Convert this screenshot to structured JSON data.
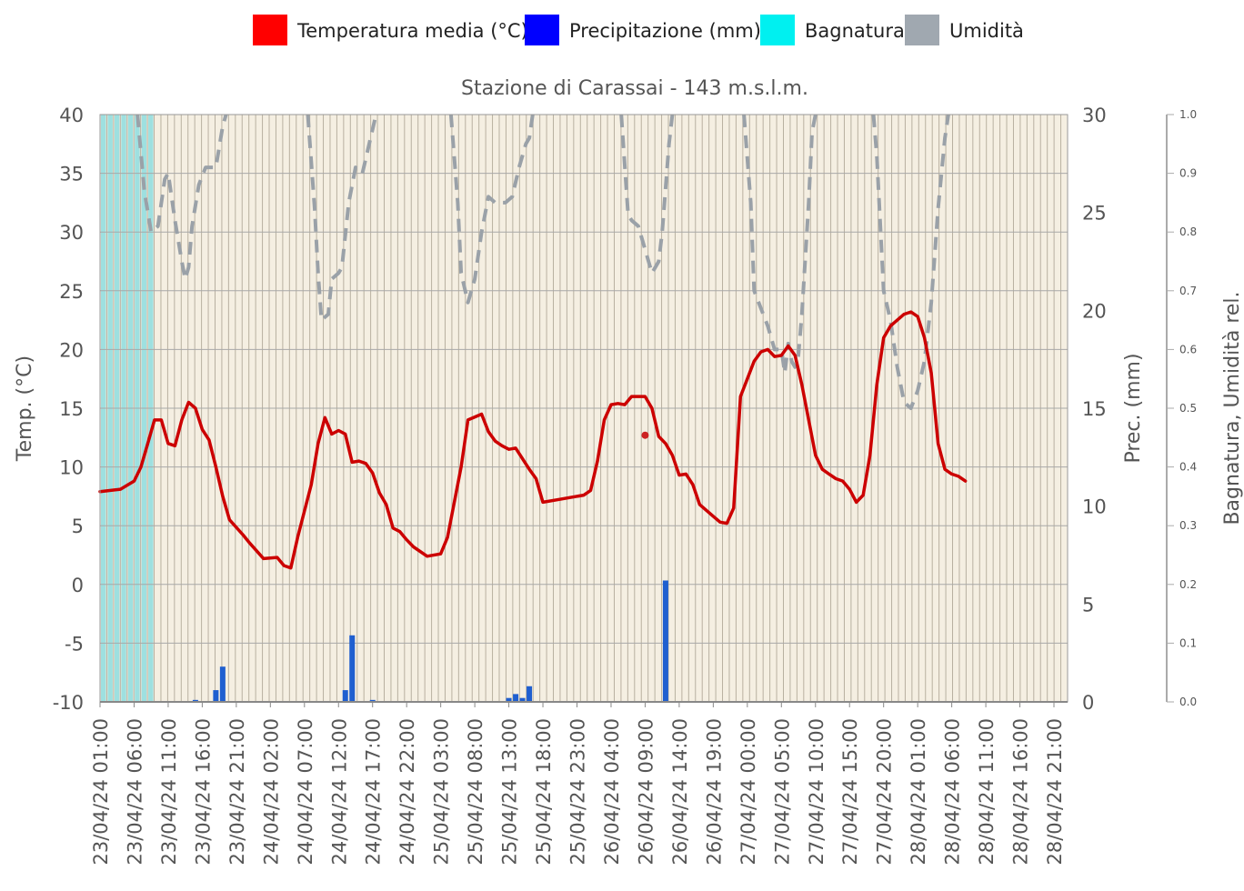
{
  "legend": [
    {
      "label": "Temperatura media (°C)",
      "color": "#ff0000"
    },
    {
      "label": "Precipitazione (mm)",
      "color": "#0000ff"
    },
    {
      "label": "Bagnatura",
      "color": "#00f0f0"
    },
    {
      "label": "Umidità",
      "color": "#a0a8b0"
    }
  ],
  "chart_data": {
    "type": "line",
    "title": "Stazione di Carassai - 143 m.s.l.m.",
    "legend_position": "top-center",
    "grid": true,
    "x_tick_labels": [
      "23/04/24 01:00",
      "23/04/24 06:00",
      "23/04/24 11:00",
      "23/04/24 16:00",
      "23/04/24 21:00",
      "24/04/24 02:00",
      "24/04/24 07:00",
      "24/04/24 12:00",
      "24/04/24 17:00",
      "24/04/24 22:00",
      "25/04/24 03:00",
      "25/04/24 08:00",
      "25/04/24 13:00",
      "25/04/24 18:00",
      "25/04/24 23:00",
      "26/04/24 04:00",
      "26/04/24 09:00",
      "26/04/24 14:00",
      "26/04/24 19:00",
      "27/04/24 00:00",
      "27/04/24 05:00",
      "27/04/24 10:00",
      "27/04/24 15:00",
      "27/04/24 20:00",
      "28/04/24 01:00",
      "28/04/24 06:00",
      "28/04/24 11:00",
      "28/04/24 16:00",
      "28/04/24 21:00"
    ],
    "x_unit": "hours since 23/04/24 01:00",
    "x_range": [
      0,
      142
    ],
    "axes": {
      "temp": {
        "label": "Temp. (°C)",
        "range": [
          -10,
          40
        ],
        "ticks": [
          -10,
          -5,
          0,
          5,
          10,
          15,
          20,
          25,
          30,
          35,
          40
        ],
        "color": "#555555"
      },
      "prec": {
        "label": "Prec. (mm)",
        "range": [
          0,
          30
        ],
        "ticks": [
          0,
          5,
          10,
          15,
          20,
          25,
          30
        ],
        "color": "#555555"
      },
      "rel": {
        "label": "Bagnatura, Umidità rel.",
        "range": [
          0,
          1
        ],
        "ticks": [
          "0.0",
          "0.1",
          "0.2",
          "0.3",
          "0.4",
          "0.5",
          "0.6",
          "0.7",
          "0.8",
          "0.9",
          "1.0"
        ],
        "color": "#777777"
      }
    },
    "series": [
      {
        "name": "Temperatura media (°C)",
        "axis": "temp",
        "color": "#cc0000",
        "style": "solid",
        "points": [
          [
            0,
            7.9
          ],
          [
            3,
            8.1
          ],
          [
            5,
            8.8
          ],
          [
            6,
            10
          ],
          [
            7,
            12
          ],
          [
            8,
            14
          ],
          [
            9,
            14
          ],
          [
            10,
            12
          ],
          [
            11,
            11.8
          ],
          [
            12,
            14
          ],
          [
            13,
            15.5
          ],
          [
            14,
            15
          ],
          [
            15,
            13.2
          ],
          [
            16,
            12.3
          ],
          [
            17,
            10
          ],
          [
            18,
            7.5
          ],
          [
            19,
            5.5
          ],
          [
            21,
            4.2
          ],
          [
            22,
            3.5
          ],
          [
            24,
            2.2
          ],
          [
            26,
            2.3
          ],
          [
            27,
            1.6
          ],
          [
            28,
            1.4
          ],
          [
            29,
            4
          ],
          [
            31,
            8.5
          ],
          [
            32,
            12
          ],
          [
            33,
            14.2
          ],
          [
            34,
            12.8
          ],
          [
            35,
            13.1
          ],
          [
            36,
            12.8
          ],
          [
            37,
            10.4
          ],
          [
            38,
            10.5
          ],
          [
            39,
            10.3
          ],
          [
            40,
            9.5
          ],
          [
            41,
            7.8
          ],
          [
            42,
            6.8
          ],
          [
            43,
            4.8
          ],
          [
            44,
            4.5
          ],
          [
            45,
            3.8
          ],
          [
            46,
            3.2
          ],
          [
            48,
            2.4
          ],
          [
            50,
            2.6
          ],
          [
            51,
            4
          ],
          [
            53,
            10
          ],
          [
            54,
            14
          ],
          [
            56,
            14.5
          ],
          [
            57,
            13
          ],
          [
            58,
            12.2
          ],
          [
            59,
            11.8
          ],
          [
            60,
            11.5
          ],
          [
            61,
            11.6
          ],
          [
            62,
            10.7
          ],
          [
            63,
            9.8
          ],
          [
            64,
            9
          ],
          [
            65,
            7
          ],
          [
            67,
            7.2
          ],
          [
            69,
            7.4
          ],
          [
            71,
            7.6
          ],
          [
            72,
            8
          ],
          [
            73,
            10.5
          ],
          [
            74,
            14
          ],
          [
            75,
            15.3
          ],
          [
            76,
            15.4
          ],
          [
            77,
            15.3
          ],
          [
            78,
            16
          ],
          [
            79,
            16
          ],
          [
            80,
            16
          ],
          [
            81,
            15
          ],
          [
            82,
            12.6
          ],
          [
            83,
            12
          ],
          [
            84,
            11
          ],
          [
            85,
            9.3
          ],
          [
            86,
            9.4
          ],
          [
            87,
            8.5
          ],
          [
            88,
            6.8
          ],
          [
            89,
            6.3
          ],
          [
            90,
            5.8
          ],
          [
            91,
            5.3
          ],
          [
            92,
            5.2
          ],
          [
            93,
            6.5
          ],
          [
            94,
            16
          ],
          [
            95,
            17.5
          ],
          [
            96,
            19
          ],
          [
            97,
            19.8
          ],
          [
            98,
            20
          ],
          [
            99,
            19.4
          ],
          [
            100,
            19.5
          ],
          [
            101,
            20.3
          ],
          [
            102,
            19.5
          ],
          [
            103,
            17
          ],
          [
            104,
            14
          ],
          [
            105,
            11
          ],
          [
            106,
            9.8
          ],
          [
            107,
            9.4
          ],
          [
            108,
            9
          ],
          [
            109,
            8.8
          ],
          [
            110,
            8.1
          ],
          [
            111,
            7
          ],
          [
            112,
            7.6
          ],
          [
            113,
            11
          ],
          [
            114,
            17
          ],
          [
            115,
            21
          ],
          [
            116,
            22
          ],
          [
            117,
            22.5
          ],
          [
            118,
            23
          ],
          [
            119,
            23.2
          ],
          [
            120,
            22.8
          ],
          [
            121,
            21
          ],
          [
            122,
            18
          ],
          [
            123,
            12
          ],
          [
            124,
            9.8
          ],
          [
            125,
            9.4
          ],
          [
            126,
            9.2
          ],
          [
            127,
            8.8
          ]
        ]
      },
      {
        "name": "Temperatura media (°C) punto",
        "axis": "temp",
        "color": "#cc2222",
        "style": "dot",
        "points": [
          [
            80,
            12.7
          ]
        ]
      },
      {
        "name": "Umidità",
        "axis": "rel",
        "color": "#a0a8b0",
        "style": "dashed",
        "segments": [
          [
            [
              5.5,
              1.0
            ],
            [
              6.5,
              0.87
            ],
            [
              7.5,
              0.8
            ],
            [
              8.5,
              0.81
            ],
            [
              9.5,
              0.89
            ],
            [
              10,
              0.9
            ],
            [
              11,
              0.82
            ],
            [
              12,
              0.75
            ],
            [
              12.5,
              0.72
            ],
            [
              13,
              0.74
            ],
            [
              13.5,
              0.81
            ],
            [
              14.5,
              0.88
            ],
            [
              15.5,
              0.91
            ],
            [
              17,
              0.91
            ],
            [
              18,
              0.98
            ],
            [
              18.5,
              1.0
            ]
          ],
          [
            [
              30.5,
              1.0
            ],
            [
              31.5,
              0.84
            ],
            [
              32,
              0.73
            ],
            [
              32.5,
              0.65
            ],
            [
              33.5,
              0.66
            ],
            [
              34,
              0.72
            ],
            [
              35,
              0.73
            ],
            [
              35.5,
              0.74
            ],
            [
              36.5,
              0.85
            ],
            [
              37.5,
              0.91
            ],
            [
              38.5,
              0.9
            ],
            [
              39.5,
              0.95
            ],
            [
              40.5,
              1.0
            ]
          ],
          [
            [
              51.5,
              1.0
            ],
            [
              52.5,
              0.85
            ],
            [
              53,
              0.73
            ],
            [
              54,
              0.68
            ],
            [
              55,
              0.72
            ],
            [
              56,
              0.8
            ],
            [
              57,
              0.86
            ],
            [
              58,
              0.85
            ],
            [
              59.5,
              0.85
            ],
            [
              60.5,
              0.86
            ],
            [
              61.5,
              0.91
            ],
            [
              62.5,
              0.95
            ],
            [
              63,
              0.96
            ],
            [
              63.5,
              1.0
            ]
          ],
          [
            [
              76.5,
              1.0
            ],
            [
              77.5,
              0.83
            ],
            [
              78,
              0.82
            ],
            [
              79,
              0.81
            ],
            [
              80.5,
              0.75
            ],
            [
              81,
              0.73
            ],
            [
              82,
              0.75
            ],
            [
              82.5,
              0.8
            ],
            [
              83.5,
              0.95
            ],
            [
              84,
              1.0
            ]
          ],
          [
            [
              94.5,
              1.0
            ],
            [
              95.5,
              0.85
            ],
            [
              96,
              0.7
            ],
            [
              97,
              0.67
            ],
            [
              98,
              0.64
            ],
            [
              99,
              0.6
            ],
            [
              100,
              0.6
            ],
            [
              100.5,
              0.56
            ],
            [
              101,
              0.61
            ],
            [
              101.5,
              0.58
            ],
            [
              102,
              0.57
            ],
            [
              102.5,
              0.59
            ],
            [
              103,
              0.66
            ],
            [
              104,
              0.85
            ],
            [
              104.5,
              0.97
            ],
            [
              105,
              1.0
            ]
          ],
          [
            [
              113.5,
              1.0
            ],
            [
              114,
              0.93
            ],
            [
              115,
              0.7
            ],
            [
              116,
              0.65
            ],
            [
              117,
              0.57
            ],
            [
              118,
              0.51
            ],
            [
              119,
              0.5
            ],
            [
              120,
              0.53
            ],
            [
              121,
              0.58
            ],
            [
              122,
              0.68
            ],
            [
              123,
              0.84
            ],
            [
              124,
              0.96
            ],
            [
              124.5,
              1.0
            ]
          ]
        ]
      }
    ],
    "bagnatura": {
      "axis": "rel",
      "color": "#9ee0e0",
      "values": [
        1,
        1,
        1,
        1,
        1,
        1,
        1,
        1,
        0,
        0,
        0,
        0,
        0,
        0,
        0,
        0,
        0,
        0,
        0,
        0,
        0,
        0,
        0,
        0,
        0,
        0,
        0,
        0,
        0,
        0,
        0,
        0,
        0,
        0,
        0,
        0,
        0,
        0,
        0,
        0,
        0,
        0,
        0,
        0,
        0,
        0,
        0,
        0,
        0,
        0,
        0,
        0,
        0,
        0,
        0,
        0,
        0,
        0,
        0,
        0,
        0,
        0,
        0,
        0,
        0,
        0,
        0,
        0,
        0,
        0,
        0,
        0,
        0,
        0,
        0,
        0,
        0,
        0,
        0,
        0,
        0,
        0,
        0,
        0,
        0,
        0,
        0,
        0,
        0,
        0,
        0,
        0,
        0,
        0,
        0,
        0,
        0,
        0,
        0,
        0,
        0,
        0,
        0,
        0,
        0,
        0,
        0,
        0,
        0,
        0,
        0,
        0,
        0,
        0,
        0,
        0,
        0,
        0,
        0,
        0,
        0,
        0,
        0,
        0,
        0,
        0,
        0,
        0,
        0,
        0,
        0,
        0,
        0,
        0,
        0,
        0,
        0,
        0,
        0,
        0,
        0,
        0,
        0
      ]
    },
    "precipitazione": {
      "axis": "prec",
      "color": "#1f5fd0",
      "bars": [
        [
          14,
          0.1
        ],
        [
          17,
          0.6
        ],
        [
          18,
          1.8
        ],
        [
          36,
          0.6
        ],
        [
          37,
          3.4
        ],
        [
          40,
          0.1
        ],
        [
          60,
          0.2
        ],
        [
          61,
          0.4
        ],
        [
          62,
          0.2
        ],
        [
          63,
          0.8
        ],
        [
          83,
          6.2
        ]
      ]
    }
  }
}
